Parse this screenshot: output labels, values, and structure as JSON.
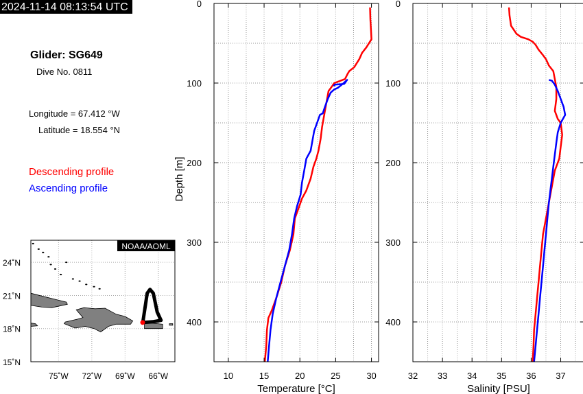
{
  "header": {
    "timestamp": "2024-11-14 08:13:54 UTC",
    "glider": "Glider: SG649",
    "dive": "Dive No. 0811",
    "longitude": "Longitude = 67.412 °W",
    "latitude": "Latitude = 18.554 °N"
  },
  "legend": {
    "descending": "Descending profile",
    "ascending": "Ascending profile"
  },
  "colors": {
    "descending": "#ff0000",
    "ascending": "#0000ff",
    "land": "#808080"
  },
  "map": {
    "badge": "NOAA/AOML",
    "lat_ticks": [
      "24˚N",
      "21˚N",
      "18˚N",
      "15˚N"
    ],
    "lon_ticks": [
      "75˚W",
      "72˚W",
      "69˚W",
      "66˚W"
    ],
    "xlim": [
      -77.5,
      -64.5
    ],
    "ylim": [
      15,
      26
    ],
    "glider_position": [
      -67.412,
      18.554
    ],
    "track": [
      [
        -67.4,
        18.55
      ],
      [
        -67.0,
        21.2
      ],
      [
        -66.75,
        21.55
      ],
      [
        -66.45,
        21.2
      ],
      [
        -66.1,
        19.5
      ],
      [
        -65.75,
        18.75
      ],
      [
        -66.5,
        18.62
      ],
      [
        -67.4,
        18.55
      ]
    ],
    "land": [
      {
        "name": "Hispaniola",
        "coords": [
          [
            -74.5,
            18.45
          ],
          [
            -73.5,
            18.05
          ],
          [
            -72.6,
            18.2
          ],
          [
            -71.8,
            18.0
          ],
          [
            -71.2,
            17.7
          ],
          [
            -70.5,
            18.2
          ],
          [
            -69.8,
            18.4
          ],
          [
            -68.5,
            18.4
          ],
          [
            -68.3,
            18.7
          ],
          [
            -69.0,
            19.1
          ],
          [
            -69.8,
            19.3
          ],
          [
            -70.8,
            19.85
          ],
          [
            -71.7,
            19.8
          ],
          [
            -72.7,
            19.9
          ],
          [
            -73.4,
            19.7
          ],
          [
            -72.8,
            19.0
          ],
          [
            -73.3,
            18.85
          ],
          [
            -74.4,
            18.6
          ]
        ]
      },
      {
        "name": "Cuba",
        "coords": [
          [
            -77.5,
            20.1
          ],
          [
            -76.5,
            19.95
          ],
          [
            -75.6,
            19.9
          ],
          [
            -74.2,
            20.2
          ],
          [
            -74.3,
            20.4
          ],
          [
            -75.3,
            20.65
          ],
          [
            -76.5,
            20.95
          ],
          [
            -77.5,
            21.2
          ]
        ]
      },
      {
        "name": "Puerto Rico",
        "coords": [
          [
            -67.25,
            18.0
          ],
          [
            -65.6,
            18.0
          ],
          [
            -65.6,
            18.4
          ],
          [
            -66.6,
            18.5
          ],
          [
            -67.25,
            18.45
          ]
        ]
      },
      {
        "name": "Jamaica",
        "coords": [
          [
            -77.5,
            18.2
          ],
          [
            -76.9,
            18.25
          ],
          [
            -77.1,
            18.45
          ],
          [
            -77.5,
            18.5
          ]
        ]
      },
      {
        "name": "Virgin Islands",
        "coords": [
          [
            -65.0,
            18.3
          ],
          [
            -64.7,
            18.3
          ],
          [
            -64.7,
            18.45
          ],
          [
            -65.0,
            18.45
          ]
        ]
      }
    ],
    "small_islands": [
      [
        -77.3,
        25.7
      ],
      [
        -76.8,
        25.2
      ],
      [
        -76.4,
        24.9
      ],
      [
        -75.9,
        24.5
      ],
      [
        -75.7,
        23.8
      ],
      [
        -75.3,
        23.4
      ],
      [
        -74.3,
        24.0
      ],
      [
        -74.8,
        22.9
      ],
      [
        -73.7,
        22.5
      ],
      [
        -73.1,
        22.3
      ],
      [
        -72.5,
        22.0
      ],
      [
        -71.8,
        21.8
      ],
      [
        -71.3,
        21.6
      ]
    ]
  },
  "chart_data": [
    {
      "type": "line",
      "xlabel": "Temperature [°C]",
      "ylabel": "Depth [m]",
      "xlim": [
        8,
        31
      ],
      "ylim": [
        450,
        0
      ],
      "xticks": [
        10,
        15,
        20,
        25,
        30
      ],
      "yticks": [
        0,
        100,
        200,
        300,
        400
      ],
      "grid": true,
      "series": [
        {
          "name": "Descending profile",
          "color": "#ff0000",
          "points": [
            [
              29.8,
              5
            ],
            [
              29.85,
              20
            ],
            [
              29.95,
              35
            ],
            [
              30.0,
              45
            ],
            [
              29.3,
              55
            ],
            [
              28.7,
              62
            ],
            [
              28.3,
              70
            ],
            [
              27.6,
              80
            ],
            [
              26.9,
              85
            ],
            [
              26.7,
              88
            ],
            [
              26.3,
              95
            ],
            [
              24.8,
              100
            ],
            [
              24.5,
              104
            ],
            [
              24.0,
              110
            ],
            [
              23.7,
              125
            ],
            [
              23.4,
              140
            ],
            [
              23.1,
              155
            ],
            [
              22.9,
              170
            ],
            [
              22.6,
              185
            ],
            [
              22.3,
              195
            ],
            [
              21.9,
              205
            ],
            [
              21.5,
              220
            ],
            [
              20.9,
              235
            ],
            [
              20.3,
              245
            ],
            [
              19.9,
              255
            ],
            [
              19.3,
              270
            ],
            [
              19.1,
              290
            ],
            [
              18.6,
              310
            ],
            [
              17.9,
              330
            ],
            [
              17.4,
              350
            ],
            [
              16.7,
              370
            ],
            [
              16.1,
              385
            ],
            [
              15.6,
              395
            ],
            [
              15.4,
              410
            ],
            [
              15.3,
              430
            ],
            [
              15.1,
              450
            ]
          ]
        },
        {
          "name": "Ascending profile",
          "color": "#0000ff",
          "points": [
            [
              15.5,
              450
            ],
            [
              15.7,
              430
            ],
            [
              15.9,
              410
            ],
            [
              16.2,
              390
            ],
            [
              16.7,
              370
            ],
            [
              17.3,
              350
            ],
            [
              17.9,
              330
            ],
            [
              18.5,
              310
            ],
            [
              18.9,
              290
            ],
            [
              19.2,
              270
            ],
            [
              19.6,
              255
            ],
            [
              20.1,
              240
            ],
            [
              20.3,
              225
            ],
            [
              20.6,
              210
            ],
            [
              20.9,
              195
            ],
            [
              21.5,
              185
            ],
            [
              21.8,
              170
            ],
            [
              22.0,
              160
            ],
            [
              22.4,
              150
            ],
            [
              22.8,
              140
            ],
            [
              23.2,
              138
            ],
            [
              23.5,
              130
            ],
            [
              23.9,
              120
            ],
            [
              24.3,
              112
            ],
            [
              24.8,
              108
            ],
            [
              25.3,
              106
            ],
            [
              26.0,
              101
            ],
            [
              26.6,
              96
            ],
            [
              26.2,
              101
            ],
            [
              24.9,
              102
            ],
            [
              24.7,
              104
            ]
          ]
        }
      ]
    },
    {
      "type": "line",
      "xlabel": "Salinity [PSU]",
      "ylabel": "",
      "xlim": [
        32,
        37.8
      ],
      "ylim": [
        450,
        0
      ],
      "xticks": [
        32,
        33,
        34,
        35,
        36,
        37
      ],
      "yticks": [
        0,
        100,
        200,
        300,
        400
      ],
      "grid": true,
      "series": [
        {
          "name": "Descending profile",
          "color": "#ff0000",
          "points": [
            [
              35.25,
              5
            ],
            [
              35.27,
              15
            ],
            [
              35.32,
              28
            ],
            [
              35.5,
              38
            ],
            [
              35.65,
              42
            ],
            [
              35.9,
              45
            ],
            [
              36.05,
              48
            ],
            [
              36.15,
              52
            ],
            [
              36.25,
              58
            ],
            [
              36.4,
              65
            ],
            [
              36.5,
              70
            ],
            [
              36.6,
              78
            ],
            [
              36.75,
              85
            ],
            [
              36.8,
              95
            ],
            [
              36.85,
              105
            ],
            [
              36.85,
              120
            ],
            [
              36.8,
              135
            ],
            [
              36.9,
              145
            ],
            [
              37.0,
              150
            ],
            [
              37.05,
              165
            ],
            [
              37.0,
              180
            ],
            [
              36.95,
              195
            ],
            [
              36.8,
              210
            ],
            [
              36.7,
              230
            ],
            [
              36.6,
              250
            ],
            [
              36.5,
              270
            ],
            [
              36.4,
              290
            ],
            [
              36.35,
              310
            ],
            [
              36.3,
              330
            ],
            [
              36.25,
              350
            ],
            [
              36.2,
              370
            ],
            [
              36.15,
              390
            ],
            [
              36.1,
              410
            ],
            [
              36.08,
              430
            ],
            [
              36.05,
              450
            ]
          ]
        },
        {
          "name": "Ascending profile",
          "color": "#0000ff",
          "points": [
            [
              36.1,
              450
            ],
            [
              36.15,
              430
            ],
            [
              36.2,
              410
            ],
            [
              36.25,
              390
            ],
            [
              36.3,
              370
            ],
            [
              36.35,
              350
            ],
            [
              36.4,
              330
            ],
            [
              36.45,
              310
            ],
            [
              36.5,
              290
            ],
            [
              36.55,
              270
            ],
            [
              36.6,
              250
            ],
            [
              36.65,
              235
            ],
            [
              36.7,
              220
            ],
            [
              36.75,
              205
            ],
            [
              36.8,
              190
            ],
            [
              36.85,
              175
            ],
            [
              36.9,
              162
            ],
            [
              37.0,
              150
            ],
            [
              37.15,
              140
            ],
            [
              37.1,
              130
            ],
            [
              37.0,
              120
            ],
            [
              36.9,
              110
            ],
            [
              36.8,
              102
            ],
            [
              36.7,
              97
            ],
            [
              36.6,
              96
            ]
          ]
        }
      ]
    }
  ]
}
